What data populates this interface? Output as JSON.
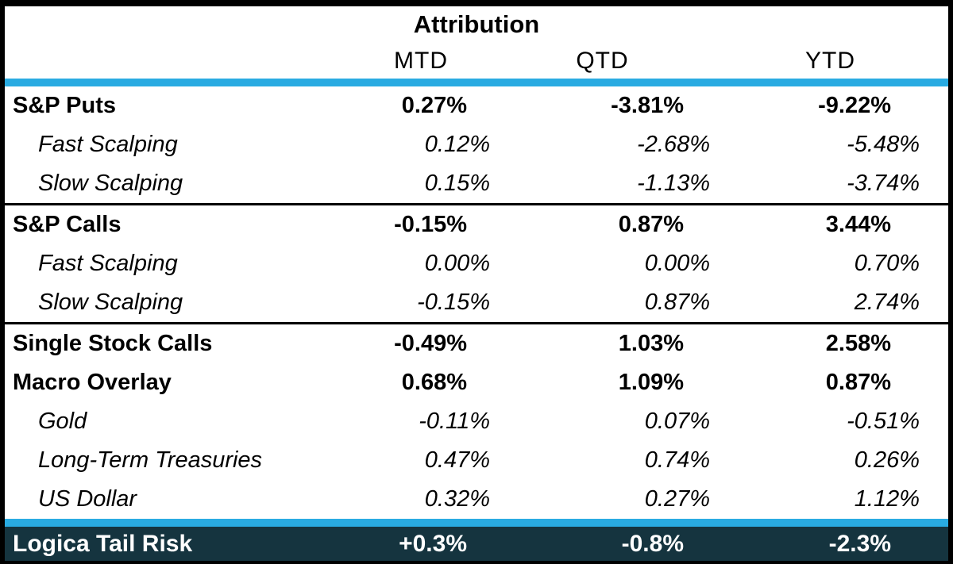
{
  "table": {
    "title": "Attribution",
    "columns": [
      "MTD",
      "QTD",
      "YTD"
    ],
    "sections": [
      {
        "rows": [
          {
            "label": "S&P Puts",
            "style": "bold",
            "values": [
              "0.27%",
              "-3.81%",
              "-9.22%"
            ]
          },
          {
            "label": "Fast Scalping",
            "style": "italic",
            "values": [
              "0.12%",
              "-2.68%",
              "-5.48%"
            ]
          },
          {
            "label": "Slow Scalping",
            "style": "italic",
            "values": [
              "0.15%",
              "-1.13%",
              "-3.74%"
            ]
          }
        ]
      },
      {
        "rows": [
          {
            "label": "S&P Calls",
            "style": "bold",
            "values": [
              "-0.15%",
              "0.87%",
              "3.44%"
            ]
          },
          {
            "label": "Fast Scalping",
            "style": "italic",
            "values": [
              "0.00%",
              "0.00%",
              "0.70%"
            ]
          },
          {
            "label": "Slow Scalping",
            "style": "italic",
            "values": [
              "-0.15%",
              "0.87%",
              "2.74%"
            ]
          }
        ]
      },
      {
        "rows": [
          {
            "label": "Single Stock Calls",
            "style": "bold",
            "values": [
              "-0.49%",
              "1.03%",
              "2.58%"
            ]
          },
          {
            "label": "Macro Overlay",
            "style": "bold",
            "values": [
              "0.68%",
              "1.09%",
              "0.87%"
            ]
          },
          {
            "label": "Gold",
            "style": "italic",
            "values": [
              "-0.11%",
              "0.07%",
              "-0.51%"
            ]
          },
          {
            "label": "Long-Term Treasuries",
            "style": "italic",
            "values": [
              "0.47%",
              "0.74%",
              "0.26%"
            ]
          },
          {
            "label": "US Dollar",
            "style": "italic",
            "values": [
              "0.32%",
              "0.27%",
              "1.12%"
            ]
          }
        ]
      }
    ],
    "footer": {
      "label": "Logica Tail Risk",
      "values": [
        "+0.3%",
        "-0.8%",
        "-2.3%"
      ]
    },
    "colors": {
      "accent_cyan": "#29ABE2",
      "footer_bg": "#15343F",
      "border_black": "#000000",
      "footer_text": "#FFFFFF"
    }
  },
  "chart_data": {
    "type": "table",
    "title": "Attribution",
    "columns": [
      "MTD",
      "QTD",
      "YTD"
    ],
    "unit": "%",
    "rows": [
      {
        "label": "S&P Puts",
        "level": "group",
        "mtd": 0.27,
        "qtd": -3.81,
        "ytd": -9.22
      },
      {
        "label": "Fast Scalping",
        "level": "sub",
        "mtd": 0.12,
        "qtd": -2.68,
        "ytd": -5.48
      },
      {
        "label": "Slow Scalping",
        "level": "sub",
        "mtd": 0.15,
        "qtd": -1.13,
        "ytd": -3.74
      },
      {
        "label": "S&P Calls",
        "level": "group",
        "mtd": -0.15,
        "qtd": 0.87,
        "ytd": 3.44
      },
      {
        "label": "Fast Scalping",
        "level": "sub",
        "mtd": 0.0,
        "qtd": 0.0,
        "ytd": 0.7
      },
      {
        "label": "Slow Scalping",
        "level": "sub",
        "mtd": -0.15,
        "qtd": 0.87,
        "ytd": 2.74
      },
      {
        "label": "Single Stock Calls",
        "level": "group",
        "mtd": -0.49,
        "qtd": 1.03,
        "ytd": 2.58
      },
      {
        "label": "Macro Overlay",
        "level": "group",
        "mtd": 0.68,
        "qtd": 1.09,
        "ytd": 0.87
      },
      {
        "label": "Gold",
        "level": "sub",
        "mtd": -0.11,
        "qtd": 0.07,
        "ytd": -0.51
      },
      {
        "label": "Long-Term Treasuries",
        "level": "sub",
        "mtd": 0.47,
        "qtd": 0.74,
        "ytd": 0.26
      },
      {
        "label": "US Dollar",
        "level": "sub",
        "mtd": 0.32,
        "qtd": 0.27,
        "ytd": 1.12
      },
      {
        "label": "Logica Tail Risk",
        "level": "total",
        "mtd": 0.3,
        "qtd": -0.8,
        "ytd": -2.3
      }
    ]
  }
}
